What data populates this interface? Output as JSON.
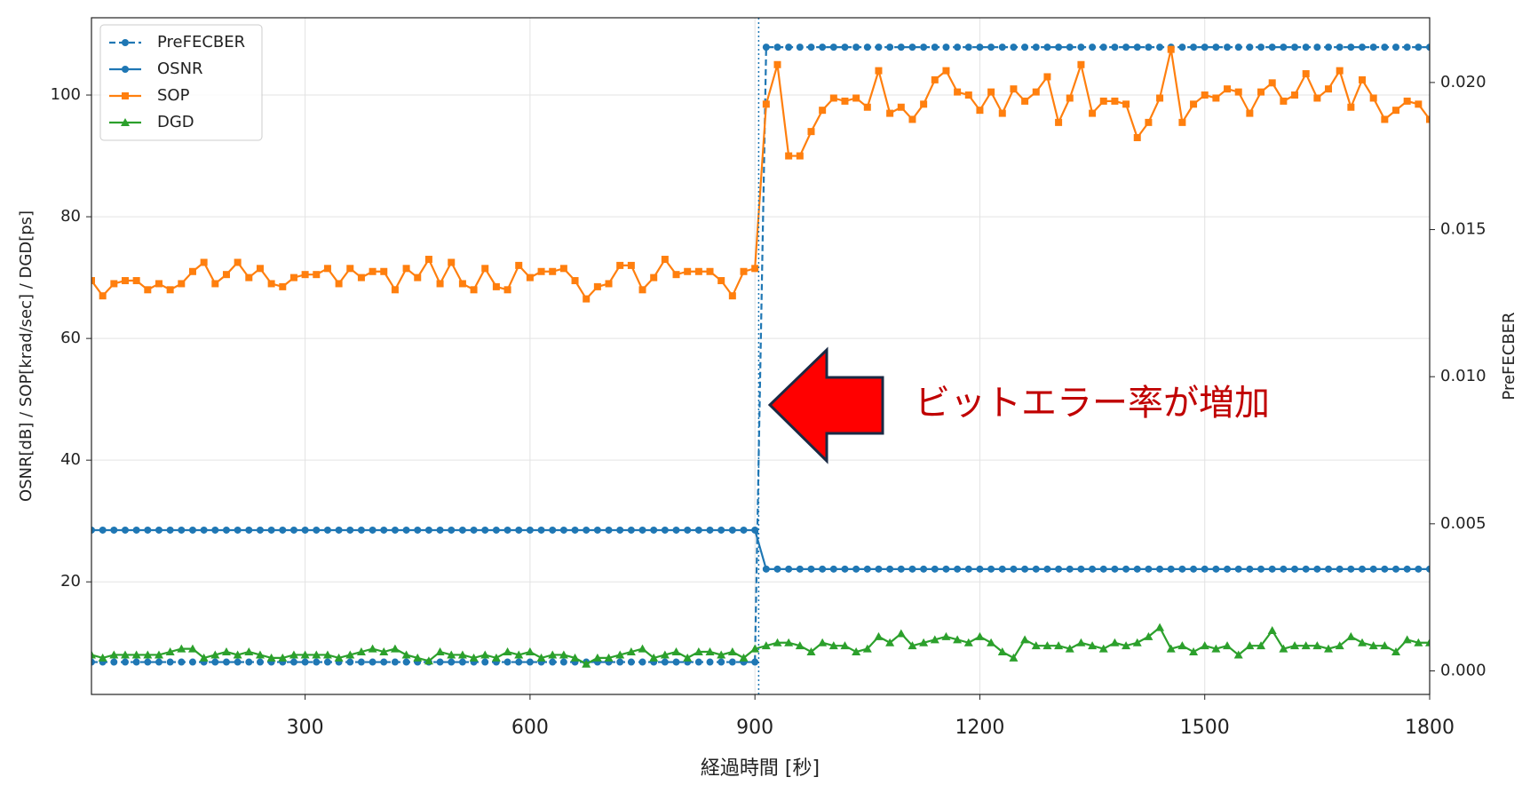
{
  "chart_data": {
    "type": "line",
    "x": [
      15,
      30,
      45,
      60,
      75,
      90,
      105,
      120,
      135,
      150,
      165,
      180,
      195,
      210,
      225,
      240,
      255,
      270,
      285,
      300,
      315,
      330,
      345,
      360,
      375,
      390,
      405,
      420,
      435,
      450,
      465,
      480,
      495,
      510,
      525,
      540,
      555,
      570,
      585,
      600,
      615,
      630,
      645,
      660,
      675,
      690,
      705,
      720,
      735,
      750,
      765,
      780,
      795,
      810,
      825,
      840,
      855,
      870,
      885,
      900,
      915,
      930,
      945,
      960,
      975,
      990,
      1005,
      1020,
      1035,
      1050,
      1065,
      1080,
      1095,
      1110,
      1125,
      1140,
      1155,
      1170,
      1185,
      1200,
      1215,
      1230,
      1245,
      1260,
      1275,
      1290,
      1305,
      1320,
      1335,
      1350,
      1365,
      1380,
      1395,
      1410,
      1425,
      1440,
      1455,
      1470,
      1485,
      1500,
      1515,
      1530,
      1545,
      1560,
      1575,
      1590,
      1605,
      1620,
      1635,
      1650,
      1665,
      1680,
      1695,
      1710,
      1725,
      1740,
      1755,
      1770,
      1785,
      1800
    ],
    "series": [
      {
        "name": "PreFECBER",
        "color": "#1f77b4",
        "axis": "y2",
        "marker": "circle",
        "dashed": true,
        "values": [
          0.0003,
          0.0003,
          0.0003,
          0.0003,
          0.0003,
          0.0003,
          0.0003,
          0.0003,
          0.0003,
          0.0003,
          0.0003,
          0.0003,
          0.0003,
          0.0003,
          0.0003,
          0.0003,
          0.0003,
          0.0003,
          0.0003,
          0.0003,
          0.0003,
          0.0003,
          0.0003,
          0.0003,
          0.0003,
          0.0003,
          0.0003,
          0.0003,
          0.0003,
          0.0003,
          0.0003,
          0.0003,
          0.0003,
          0.0003,
          0.0003,
          0.0003,
          0.0003,
          0.0003,
          0.0003,
          0.0003,
          0.0003,
          0.0003,
          0.0003,
          0.0003,
          0.0003,
          0.0003,
          0.0003,
          0.0003,
          0.0003,
          0.0003,
          0.0003,
          0.0003,
          0.0003,
          0.0003,
          0.0003,
          0.0003,
          0.0003,
          0.0003,
          0.0003,
          0.0003,
          0.0212,
          0.0212,
          0.0212,
          0.0212,
          0.0212,
          0.0212,
          0.0212,
          0.0212,
          0.0212,
          0.0212,
          0.0212,
          0.0212,
          0.0212,
          0.0212,
          0.0212,
          0.0212,
          0.0212,
          0.0212,
          0.0212,
          0.0212,
          0.0212,
          0.0212,
          0.0212,
          0.0212,
          0.0212,
          0.0212,
          0.0212,
          0.0212,
          0.0212,
          0.0212,
          0.0212,
          0.0212,
          0.0212,
          0.0212,
          0.0212,
          0.0212,
          0.0212,
          0.0212,
          0.0212,
          0.0212,
          0.0212,
          0.0212,
          0.0212,
          0.0212,
          0.0212,
          0.0212,
          0.0212,
          0.0212,
          0.0212,
          0.0212,
          0.0212,
          0.0212,
          0.0212,
          0.0212,
          0.0212,
          0.0212,
          0.0212,
          0.0212,
          0.0212,
          0.0212
        ]
      },
      {
        "name": "OSNR",
        "color": "#1f77b4",
        "marker": "circle",
        "values": [
          28.5,
          28.5,
          28.5,
          28.5,
          28.5,
          28.5,
          28.5,
          28.5,
          28.5,
          28.5,
          28.5,
          28.5,
          28.5,
          28.5,
          28.5,
          28.5,
          28.5,
          28.5,
          28.5,
          28.5,
          28.5,
          28.5,
          28.5,
          28.5,
          28.5,
          28.5,
          28.5,
          28.5,
          28.5,
          28.5,
          28.5,
          28.5,
          28.5,
          28.5,
          28.5,
          28.5,
          28.5,
          28.5,
          28.5,
          28.5,
          28.5,
          28.5,
          28.5,
          28.5,
          28.5,
          28.5,
          28.5,
          28.5,
          28.5,
          28.5,
          28.5,
          28.5,
          28.5,
          28.5,
          28.5,
          28.5,
          28.5,
          28.5,
          28.5,
          28.5,
          22.1,
          22.1,
          22.1,
          22.1,
          22.1,
          22.1,
          22.1,
          22.1,
          22.1,
          22.1,
          22.1,
          22.1,
          22.1,
          22.1,
          22.1,
          22.1,
          22.1,
          22.1,
          22.1,
          22.1,
          22.1,
          22.1,
          22.1,
          22.1,
          22.1,
          22.1,
          22.1,
          22.1,
          22.1,
          22.1,
          22.1,
          22.1,
          22.1,
          22.1,
          22.1,
          22.1,
          22.1,
          22.1,
          22.1,
          22.1,
          22.1,
          22.1,
          22.1,
          22.1,
          22.1,
          22.1,
          22.1,
          22.1,
          22.1,
          22.1,
          22.1,
          22.1,
          22.1,
          22.1,
          22.1,
          22.1,
          22.1,
          22.1,
          22.1,
          22.1
        ]
      },
      {
        "name": "SOP",
        "color": "#ff7f0e",
        "marker": "square",
        "values": [
          69.5,
          67,
          69,
          69.5,
          69.5,
          68,
          69,
          68,
          69,
          71,
          72.5,
          69,
          70.5,
          72.5,
          70,
          71.5,
          69,
          68.5,
          70,
          70.5,
          70.5,
          71.5,
          69,
          71.5,
          70,
          71,
          71,
          68,
          71.5,
          70,
          73,
          69,
          72.5,
          69,
          68,
          71.5,
          68.5,
          68,
          72,
          70,
          71,
          71,
          71.5,
          69.5,
          66.5,
          68.5,
          69,
          72,
          72,
          68,
          70,
          73,
          70.5,
          71,
          71,
          71,
          69.5,
          67,
          71,
          71.5,
          98.5,
          105,
          90,
          90,
          94,
          97.5,
          99.5,
          99,
          99.5,
          98,
          104,
          97,
          98,
          96,
          98.5,
          102.5,
          104,
          100.5,
          100,
          97.5,
          100.5,
          97,
          101,
          99,
          100.5,
          103,
          95.5,
          99.5,
          105,
          97,
          99,
          99,
          98.5,
          93,
          95.5,
          99.5,
          107.5,
          95.5,
          98.5,
          100,
          99.5,
          101,
          100.5,
          97,
          100.5,
          102,
          99,
          100,
          103.5,
          99.5,
          101,
          104,
          98,
          102.5,
          99.5,
          96,
          97.5,
          99,
          98.5,
          96
        ]
      },
      {
        "name": "DGD",
        "color": "#2ca02c",
        "marker": "triangle",
        "values": [
          8,
          7.5,
          8,
          8,
          8,
          8,
          8,
          8.5,
          9,
          9,
          7.5,
          8,
          8.5,
          8,
          8.5,
          8,
          7.5,
          7.5,
          8,
          8,
          8,
          8,
          7.5,
          8,
          8.5,
          9,
          8.5,
          9,
          8,
          7.5,
          7,
          8.5,
          8,
          8,
          7.5,
          8,
          7.5,
          8.5,
          8,
          8.5,
          7.5,
          8,
          8,
          7.5,
          6.5,
          7.5,
          7.5,
          8,
          8.5,
          9,
          7.5,
          8,
          8.5,
          7.5,
          8.5,
          8.5,
          8,
          8.5,
          7.5,
          9,
          9.5,
          10,
          10,
          9.5,
          8.5,
          10,
          9.5,
          9.5,
          8.5,
          9,
          11,
          10,
          11.5,
          9.5,
          10,
          10.5,
          11,
          10.5,
          10,
          11,
          10,
          8.5,
          7.5,
          10.5,
          9.5,
          9.5,
          9.5,
          9,
          10,
          9.5,
          9,
          10,
          9.5,
          10,
          11,
          12.5,
          9,
          9.5,
          8.5,
          9.5,
          9,
          9.5,
          8,
          9.5,
          9.5,
          12,
          9,
          9.5,
          9.5,
          9.5,
          9,
          9.5,
          11,
          10,
          9.5,
          9.5,
          8.5,
          10.5,
          10,
          10
        ]
      }
    ],
    "xlim": [
      15,
      1800
    ],
    "xticks": [
      300,
      600,
      900,
      1200,
      1500,
      1800
    ],
    "ylim": [
      1.5,
      112.7
    ],
    "yticks": [
      20,
      40,
      60,
      80,
      100
    ],
    "y2lim": [
      -0.0008,
      0.0222
    ],
    "y2ticks": [
      {
        "value": 0,
        "label": "0.000"
      },
      0.005,
      {
        "value": 0.01,
        "label": "0.010"
      },
      0.015,
      {
        "value": 0.02,
        "label": "0.020"
      }
    ],
    "xlabel": "経過時間 [秒]",
    "ylabel": "OSNR[dB] / SOP[krad/sec] / DGD[ps]",
    "y2label": "PreFECBER",
    "grid": true,
    "legend": "upper left",
    "vline_x": 905,
    "vline_color": "#1f77b4",
    "annotation": "ビットエラー率が増加",
    "annotation_color": "#c00000"
  }
}
